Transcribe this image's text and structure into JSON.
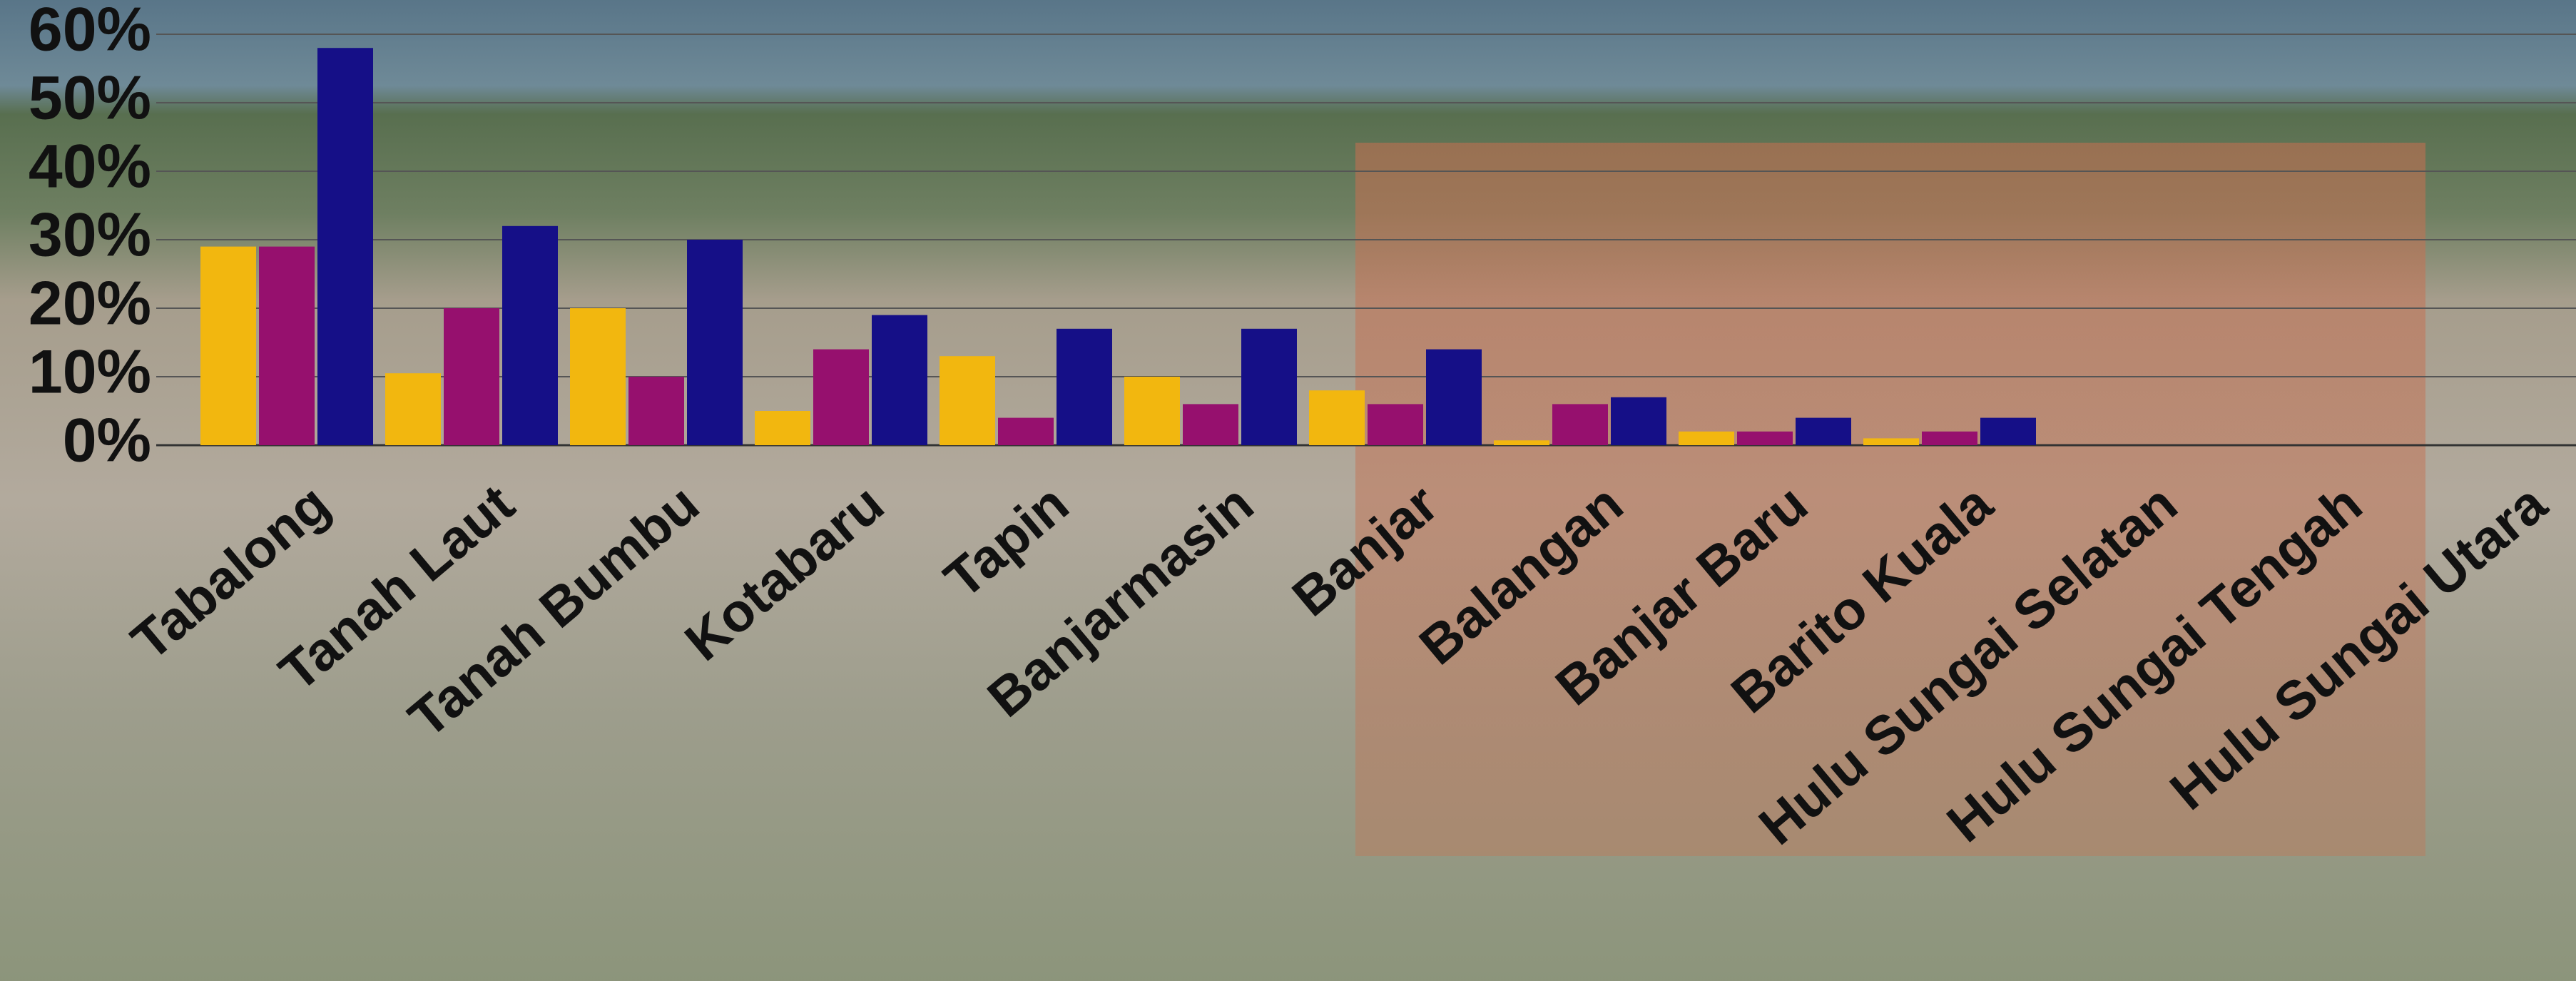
{
  "chart_data": {
    "type": "bar",
    "categories": [
      "Tabalong",
      "Tanah Laut",
      "Tanah Bumbu",
      "Kotabaru",
      "Tapin",
      "Banjarmasin",
      "Banjar",
      "Balangan",
      "Banjar Baru",
      "Barito Kuala",
      "Hulu Sungai Selatan",
      "Hulu Sungai Tengah",
      "Hulu Sungai Utara"
    ],
    "series": [
      {
        "color": "#f2b70f",
        "values": [
          29,
          10.5,
          20,
          5,
          13,
          10,
          8,
          0.7,
          2,
          1,
          0,
          0,
          0
        ]
      },
      {
        "color": "#96106e",
        "values": [
          29,
          20,
          10,
          14,
          4,
          6,
          6,
          6,
          2,
          2,
          0,
          0,
          0
        ]
      },
      {
        "color": "#150f87",
        "values": [
          58,
          32,
          30,
          19,
          17,
          17,
          14,
          7,
          4,
          4,
          0,
          0,
          0
        ]
      }
    ],
    "ylim": [
      0,
      60
    ],
    "yticks": [
      {
        "value": 0,
        "label": "0%"
      },
      {
        "value": 10,
        "label": "10%"
      },
      {
        "value": 20,
        "label": "20%"
      },
      {
        "value": 30,
        "label": "30%"
      },
      {
        "value": 40,
        "label": "40%"
      },
      {
        "value": 50,
        "label": "50%"
      },
      {
        "value": 60,
        "label": "60%"
      }
    ],
    "grid": true
  }
}
